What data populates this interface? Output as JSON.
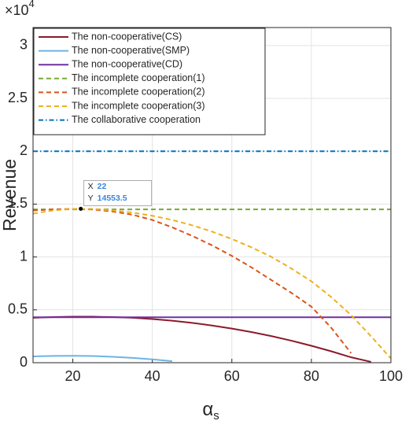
{
  "chart_data": {
    "type": "line",
    "xlabel": "α",
    "xlabel_sub": "s",
    "ylabel": "Revenue",
    "y_multiplier": "×10",
    "y_multiplier_exp": "4",
    "x": [
      10,
      15,
      20,
      25,
      30,
      35,
      40,
      45,
      50,
      55,
      60,
      65,
      70,
      75,
      80,
      85,
      90,
      95,
      100
    ],
    "series": [
      {
        "name": "The non-cooperative(CS)",
        "color": "#8b1a2b",
        "dash": "",
        "values": [
          4250,
          4320,
          4350,
          4350,
          4320,
          4250,
          4130,
          3970,
          3770,
          3520,
          3230,
          2890,
          2510,
          2080,
          1600,
          1080,
          510,
          80,
          null
        ]
      },
      {
        "name": "The non-cooperative(SMP)",
        "color": "#6cb4e4",
        "dash": "",
        "values": [
          600,
          640,
          650,
          630,
          560,
          460,
          320,
          140,
          null,
          null,
          null,
          null,
          null,
          null,
          null,
          null,
          null,
          null,
          null
        ]
      },
      {
        "name": "The non-cooperative(CD)",
        "color": "#7030a0",
        "dash": "",
        "values": [
          4300,
          4300,
          4300,
          4300,
          4300,
          4300,
          4300,
          4300,
          4300,
          4300,
          4300,
          4300,
          4300,
          4300,
          4300,
          4300,
          4300,
          4300,
          4300
        ]
      },
      {
        "name": "The incomplete cooperation(1)",
        "color": "#77ac30",
        "dash": "6 4",
        "values": [
          14500,
          14500,
          14500,
          14500,
          14500,
          14500,
          14500,
          14500,
          14500,
          14500,
          14500,
          14500,
          14500,
          14500,
          14500,
          14500,
          14500,
          14500,
          14500
        ]
      },
      {
        "name": "The incomplete cooperation(2)",
        "color": "#d95319",
        "dash": "6 4",
        "values": [
          14400,
          14500,
          14550,
          14500,
          14300,
          14000,
          13500,
          12800,
          12000,
          11100,
          10100,
          9000,
          7800,
          6600,
          5300,
          3300,
          900,
          null,
          null
        ]
      },
      {
        "name": "The incomplete cooperation(3)",
        "color": "#edb120",
        "dash": "6 4",
        "values": [
          14100,
          14400,
          14550,
          14550,
          14400,
          14200,
          13900,
          13500,
          13000,
          12400,
          11700,
          10900,
          10000,
          8900,
          7700,
          6200,
          4500,
          2500,
          400
        ]
      },
      {
        "name": "The collaborative cooperation",
        "color": "#0072bd",
        "dash": "6 3 1.5 3",
        "values": [
          20000,
          20000,
          20000,
          20000,
          20000,
          20000,
          20000,
          20000,
          20000,
          20000,
          20000,
          20000,
          20000,
          20000,
          20000,
          20000,
          20000,
          20000,
          20000
        ]
      }
    ],
    "xlim": [
      10,
      100
    ],
    "xticks": [
      20,
      40,
      60,
      80,
      100
    ],
    "ylim": [
      0,
      31700
    ],
    "yticks": [
      {
        "value": 0,
        "label": "0"
      },
      {
        "value": 5000,
        "label": "0.5"
      },
      {
        "value": 10000,
        "label": "1"
      },
      {
        "value": 15000,
        "label": "1.5"
      },
      {
        "value": 20000,
        "label": "2"
      },
      {
        "value": 25000,
        "label": "2.5"
      },
      {
        "value": 30000,
        "label": "3"
      }
    ],
    "grid": true,
    "legend": "upper left",
    "datatip": {
      "x_label": "X",
      "x": 22,
      "y_label": "Y",
      "y": 14553.5
    }
  }
}
